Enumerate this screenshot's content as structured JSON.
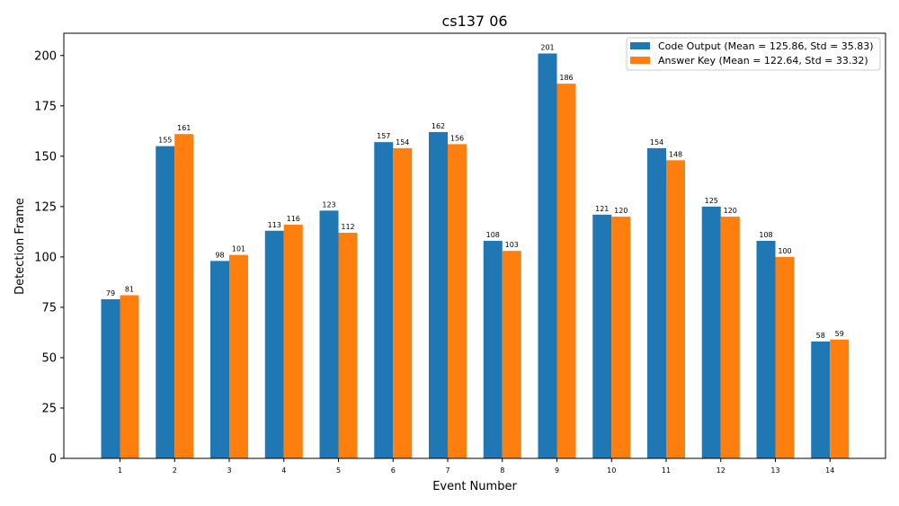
{
  "chart_data": {
    "type": "bar",
    "title": "cs137 06",
    "xlabel": "Event Number",
    "ylabel": "Detection Frame",
    "categories": [
      "1",
      "2",
      "3",
      "4",
      "5",
      "6",
      "7",
      "8",
      "9",
      "10",
      "11",
      "12",
      "13",
      "14"
    ],
    "series": [
      {
        "name": "Code Output (Mean = 125.86, Std = 35.83)",
        "color": "#1f77b4",
        "values": [
          79,
          155,
          98,
          113,
          123,
          157,
          162,
          108,
          201,
          121,
          154,
          125,
          108,
          58
        ]
      },
      {
        "name": "Answer Key (Mean = 122.64, Std = 33.32)",
        "color": "#ff7f0e",
        "values": [
          81,
          161,
          101,
          116,
          112,
          154,
          156,
          103,
          186,
          120,
          148,
          120,
          100,
          59
        ]
      }
    ],
    "ylim": [
      0,
      211.05
    ],
    "yticks": [
      0,
      25,
      50,
      75,
      100,
      125,
      150,
      175,
      200
    ],
    "grid": false,
    "legend_position": "top-right"
  }
}
